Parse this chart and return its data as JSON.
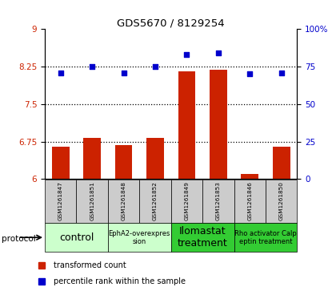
{
  "title": "GDS5670 / 8129254",
  "samples": [
    "GSM1261847",
    "GSM1261851",
    "GSM1261848",
    "GSM1261852",
    "GSM1261849",
    "GSM1261853",
    "GSM1261846",
    "GSM1261850"
  ],
  "bar_values": [
    6.65,
    6.82,
    6.68,
    6.82,
    8.15,
    8.19,
    6.1,
    6.64
  ],
  "dot_values": [
    71,
    75,
    71,
    75,
    83,
    84,
    70,
    71
  ],
  "ylim_left": [
    6,
    9
  ],
  "ylim_right": [
    0,
    100
  ],
  "yticks_left": [
    6,
    6.75,
    7.5,
    8.25,
    9
  ],
  "yticks_right": [
    0,
    25,
    50,
    75,
    100
  ],
  "ytick_labels_left": [
    "6",
    "6.75",
    "7.5",
    "8.25",
    "9"
  ],
  "ytick_labels_right": [
    "0",
    "25",
    "50",
    "75",
    "100%"
  ],
  "hlines": [
    6.75,
    7.5,
    8.25
  ],
  "bar_color": "#cc2200",
  "dot_color": "#0000cc",
  "bar_bottom": 6,
  "protocols": [
    {
      "label": "control",
      "start": 0,
      "end": 2,
      "color": "#ccffcc",
      "fontsize": 9
    },
    {
      "label": "EphA2-overexpres\nsion",
      "start": 2,
      "end": 4,
      "color": "#ccffcc",
      "fontsize": 6
    },
    {
      "label": "Ilomastat\ntreatment",
      "start": 4,
      "end": 6,
      "color": "#33cc33",
      "fontsize": 9
    },
    {
      "label": "Rho activator Calp\neptin treatment",
      "start": 6,
      "end": 8,
      "color": "#33cc33",
      "fontsize": 6
    }
  ],
  "protocol_label": "protocol",
  "legend_items": [
    {
      "label": "transformed count",
      "color": "#cc2200"
    },
    {
      "label": "percentile rank within the sample",
      "color": "#0000cc"
    }
  ],
  "sample_bg_color": "#cccccc"
}
